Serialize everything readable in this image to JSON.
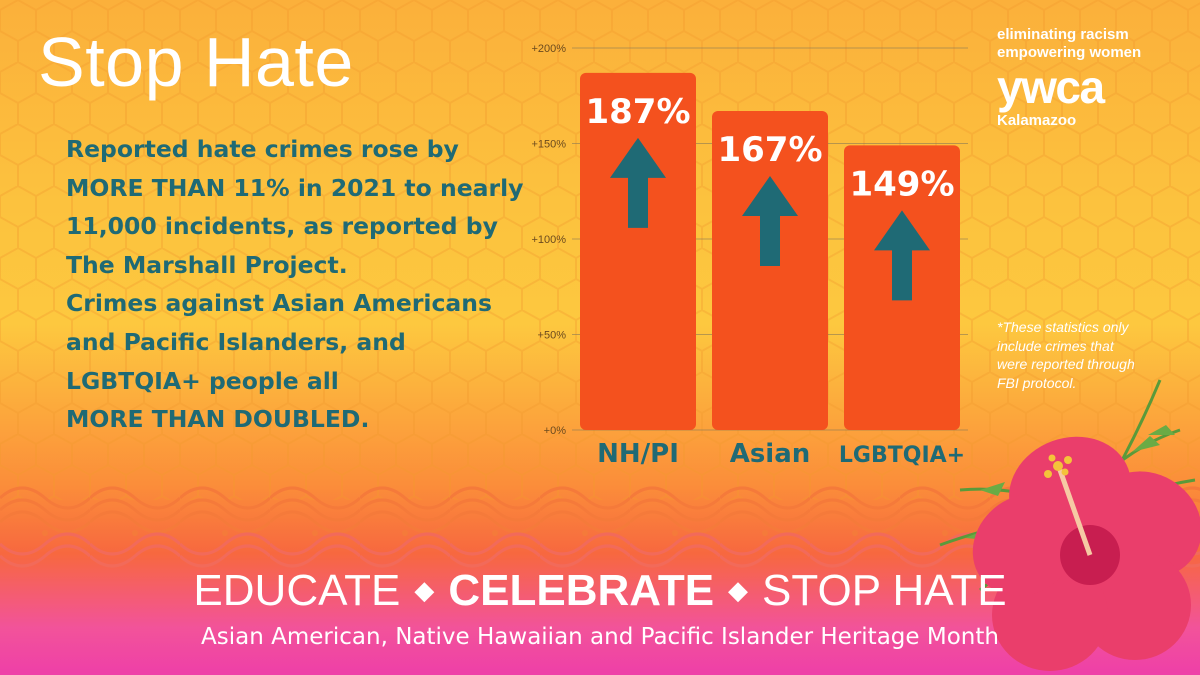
{
  "headline": "Stop Hate",
  "body_lines": [
    "Reported hate crimes rose by",
    "MORE THAN 11% in 2021 to nearly",
    "11,000 incidents, as reported by",
    "The Marshall Project.",
    "Crimes against Asian Americans",
    "and Pacific Islanders, and",
    "LGBTQIA+ people all",
    "MORE THAN DOUBLED."
  ],
  "brand": {
    "tagline_1": "eliminating racism",
    "tagline_2": "empowering women",
    "logo": "ywca",
    "location": "Kalamazoo"
  },
  "footnote_lines": [
    "*These statistics only",
    "include crimes that",
    "were reported through",
    "FBI protocol."
  ],
  "footer": {
    "word_1": "EDUCATE",
    "word_2": "CELEBRATE",
    "word_3": "STOP HATE",
    "diamond": "◆",
    "subtitle": "Asian American, Native Hawaiian and Pacific Islander Heritage Month"
  },
  "chart_data": {
    "type": "bar",
    "categories": [
      "NH/PI",
      "Asian",
      "LGBTQIA+"
    ],
    "values": [
      187,
      167,
      149
    ],
    "value_labels": [
      "187%",
      "167%",
      "149%"
    ],
    "ylim": [
      0,
      200
    ],
    "yticks": [
      0,
      50,
      100,
      150,
      200
    ],
    "ytick_labels": [
      "+0%",
      "+50%",
      "+100%",
      "+150%",
      "+200%"
    ],
    "grid": true,
    "colors": {
      "bar": "#f4511e",
      "arrow": "#1f6a75",
      "label": "#ffffff",
      "category": "#1f6a75",
      "grid": "#8a7a55"
    }
  }
}
